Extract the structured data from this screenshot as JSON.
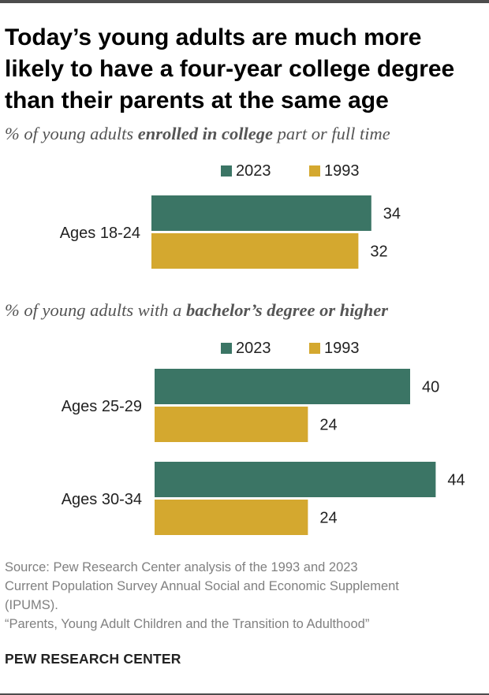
{
  "title": "Today’s young adults are much more likely to have a four-year college degree than their parents at the same age",
  "colors": {
    "y2023": "#3b7565",
    "y1993": "#d4a82f"
  },
  "chart_data": [
    {
      "type": "bar",
      "orientation": "horizontal",
      "subtitle_pre": "% of young adults ",
      "subtitle_bold": "enrolled in college",
      "subtitle_post": " part or full time",
      "legend": [
        "2023",
        "1993"
      ],
      "categories": [
        "Ages 18-24"
      ],
      "series": [
        {
          "name": "2023",
          "values": [
            34
          ]
        },
        {
          "name": "1993",
          "values": [
            32
          ]
        }
      ],
      "xlim": [
        0,
        50
      ]
    },
    {
      "type": "bar",
      "orientation": "horizontal",
      "subtitle_pre": "% of young adults with a ",
      "subtitle_bold": "bachelor’s degree or higher",
      "subtitle_post": "",
      "legend": [
        "2023",
        "1993"
      ],
      "categories": [
        "Ages 25-29",
        "Ages 30-34"
      ],
      "series": [
        {
          "name": "2023",
          "values": [
            40,
            44
          ]
        },
        {
          "name": "1993",
          "values": [
            24,
            24
          ]
        }
      ],
      "xlim": [
        0,
        50
      ]
    }
  ],
  "notes": [
    "Source: Pew Research Center analysis of the 1993 and 2023",
    "Current Population Survey Annual Social and Economic Supplement",
    "(IPUMS).",
    "“Parents, Young Adult Children and the Transition to Adulthood”"
  ],
  "brand": "PEW RESEARCH CENTER"
}
